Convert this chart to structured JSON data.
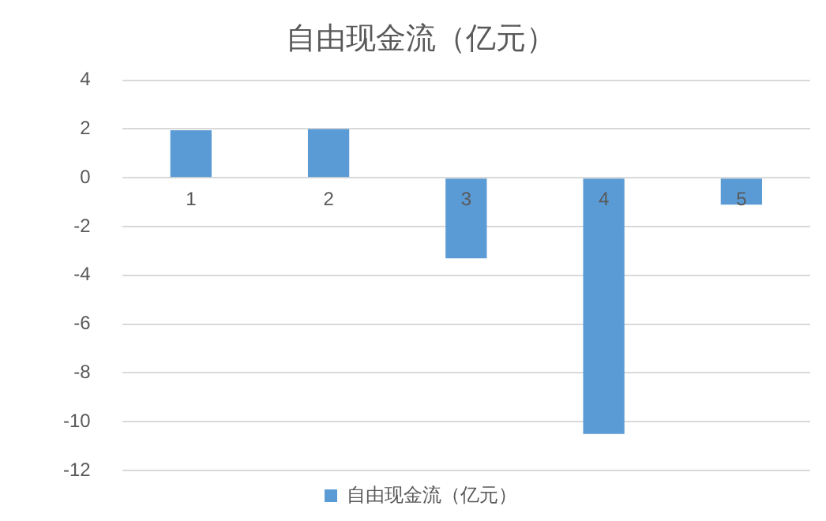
{
  "chart_data": {
    "type": "bar",
    "title": "自由现金流（亿元）",
    "categories": [
      "1",
      "2",
      "3",
      "4",
      "5"
    ],
    "series": [
      {
        "name": "自由现金流（亿元）",
        "color": "#5b9bd5",
        "values": [
          1.95,
          2.0,
          -3.3,
          -10.5,
          -1.1
        ]
      }
    ],
    "ylim": [
      -12,
      4
    ],
    "yticks": [
      -12,
      -10,
      -8,
      -6,
      -4,
      -2,
      0,
      2,
      4
    ],
    "grid": "y",
    "legend": "bottom"
  }
}
